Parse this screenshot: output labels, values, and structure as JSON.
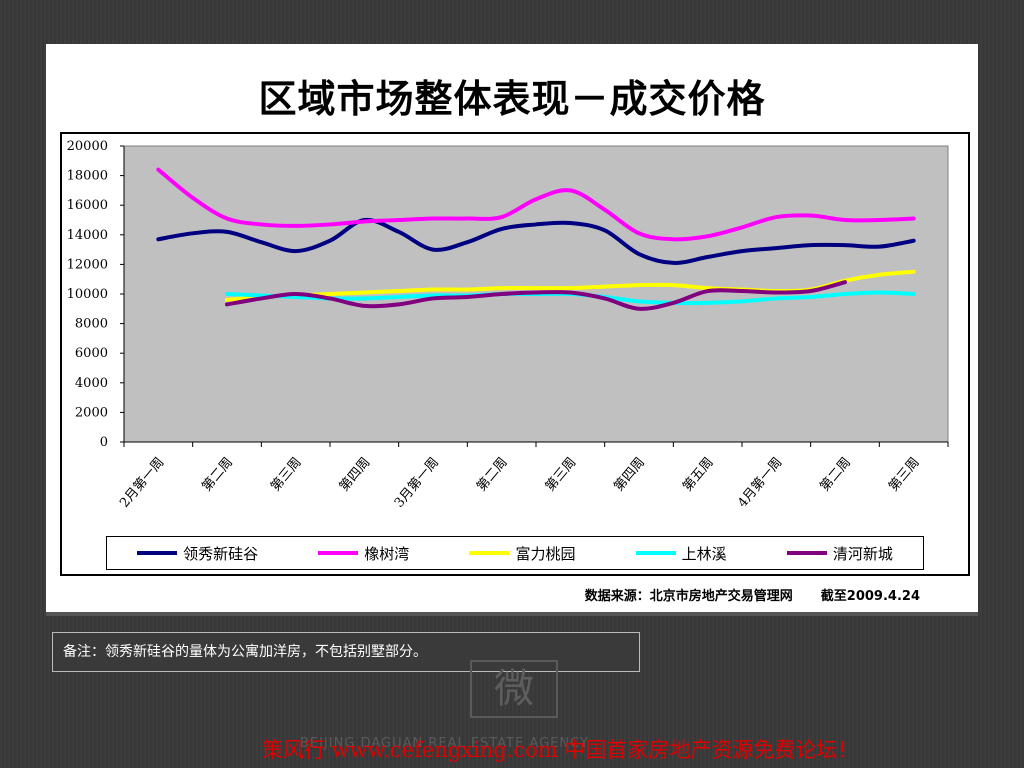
{
  "slide": {
    "title": "区域市场整体表现－成交价格",
    "source_label": "数据来源：北京市房地产交易管理网",
    "as_of": "截至2009.4.24",
    "note": "备注：领秀新硅谷的量体为公寓加洋房，不包括别墅部分。",
    "footer": "策风行 www.cefengxing.com 中国首家房地产资源免费论坛！",
    "watermark_mark": "微",
    "watermark_text": "BEIJING DAGUAN REAL ESTATE AGENCY"
  },
  "chart_data": {
    "type": "line",
    "title": "",
    "xlabel": "",
    "ylabel": "",
    "ylim": [
      0,
      20000
    ],
    "yticks": [
      0,
      2000,
      4000,
      6000,
      8000,
      10000,
      12000,
      14000,
      16000,
      18000,
      20000
    ],
    "categories": [
      "2月第一周",
      "第二周",
      "第三周",
      "第四周",
      "3月第一周",
      "第二周",
      "第三周",
      "第四周",
      "第五周",
      "4月第一周",
      "第二周",
      "第三周"
    ],
    "grid": false,
    "plot_background": "#c0c0c0",
    "legend_position": "bottom",
    "series": [
      {
        "name": "领秀新硅谷",
        "color": "#000080",
        "x": [
          0,
          0.5,
          1,
          1.5,
          2,
          2.5,
          3,
          3.5,
          4,
          4.5,
          5,
          5.5,
          6,
          6.5,
          7,
          7.5,
          8,
          8.5,
          9,
          9.5,
          10,
          10.5,
          11
        ],
        "y": [
          13700,
          14100,
          14200,
          13500,
          12900,
          13600,
          15000,
          14200,
          13000,
          13500,
          14400,
          14700,
          14800,
          14300,
          12700,
          12100,
          12500,
          12900,
          13100,
          13300,
          13300,
          13200,
          13600
        ]
      },
      {
        "name": "橡树湾",
        "color": "#ff00ff",
        "x": [
          0,
          0.5,
          1,
          1.5,
          2,
          2.5,
          3,
          3.5,
          4,
          4.5,
          5,
          5.5,
          6,
          6.5,
          7,
          7.5,
          8,
          8.5,
          9,
          9.5,
          10,
          10.5,
          11
        ],
        "y": [
          18400,
          16500,
          15100,
          14700,
          14600,
          14700,
          14900,
          15000,
          15100,
          15100,
          15200,
          16400,
          17000,
          15700,
          14100,
          13700,
          13900,
          14500,
          15200,
          15300,
          15000,
          15000,
          15100
        ]
      },
      {
        "name": "富力桃园",
        "color": "#ffff00",
        "x": [
          1,
          1.5,
          2,
          2.5,
          3,
          3.5,
          4,
          4.5,
          5,
          5.5,
          6,
          6.5,
          7,
          7.5,
          8,
          8.5,
          9,
          9.5,
          10,
          10.5,
          11
        ],
        "y": [
          9600,
          9800,
          9900,
          10000,
          10100,
          10200,
          10300,
          10300,
          10400,
          10400,
          10400,
          10500,
          10600,
          10600,
          10400,
          10300,
          10200,
          10300,
          10900,
          11300,
          11500
        ]
      },
      {
        "name": "上林溪",
        "color": "#00ffff",
        "x": [
          1,
          1.5,
          2,
          2.5,
          3,
          3.5,
          4,
          4.5,
          5,
          5.5,
          6,
          6.5,
          7,
          7.5,
          8,
          8.5,
          9,
          9.5,
          10,
          10.5,
          11
        ],
        "y": [
          10000,
          9900,
          9800,
          9700,
          9700,
          9800,
          9900,
          9900,
          10000,
          10000,
          10000,
          9800,
          9500,
          9400,
          9400,
          9500,
          9700,
          9800,
          10000,
          10100,
          10000
        ]
      },
      {
        "name": "清河新城",
        "color": "#800080",
        "x": [
          1,
          1.5,
          2,
          2.5,
          3,
          3.5,
          4,
          4.5,
          5,
          5.5,
          6,
          6.5,
          7,
          7.5,
          8,
          8.5,
          9,
          9.5,
          10
        ],
        "y": [
          9300,
          9700,
          10000,
          9700,
          9200,
          9300,
          9700,
          9800,
          10000,
          10100,
          10100,
          9700,
          9000,
          9400,
          10200,
          10200,
          10100,
          10200,
          10800
        ]
      }
    ]
  }
}
